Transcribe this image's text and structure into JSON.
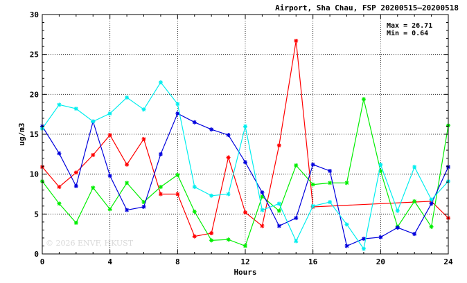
{
  "chart_data": {
    "type": "line",
    "title": "Airport, Sha Chau, FSP 20200515—20200518",
    "xlabel": "Hours",
    "ylabel": "ug/m3",
    "xlim": [
      0,
      24
    ],
    "ylim": [
      0,
      30
    ],
    "x_ticks": [
      "0",
      "4",
      "8",
      "12",
      "16",
      "20",
      "24"
    ],
    "y_ticks": [
      "0",
      "5",
      "10",
      "15",
      "20",
      "25",
      "30"
    ],
    "grid": true,
    "legend": "none",
    "stats": {
      "max_label": "Max = 26.71",
      "min_label": "Min =  0.64"
    },
    "watermark": "© 2026  ENVF, HKUST",
    "series": [
      {
        "color": "#ff0000",
        "points": [
          [
            0,
            10.9
          ],
          [
            1,
            8.4
          ],
          [
            2,
            10.2
          ],
          [
            3,
            12.4
          ],
          [
            4,
            14.9
          ],
          [
            5,
            11.2
          ],
          [
            6,
            14.4
          ],
          [
            7,
            7.5
          ],
          [
            8,
            7.5
          ],
          [
            9,
            2.2
          ],
          [
            10,
            2.6
          ],
          [
            11,
            12.1
          ],
          [
            12,
            5.2
          ],
          [
            13,
            3.5
          ],
          [
            14,
            13.6
          ],
          [
            15,
            26.71
          ],
          [
            16,
            5.9
          ],
          [
            23,
            6.6
          ],
          [
            24,
            4.5
          ]
        ]
      },
      {
        "color": "#00ee00",
        "points": [
          [
            0,
            9.1
          ],
          [
            1,
            6.3
          ],
          [
            2,
            3.9
          ],
          [
            3,
            8.3
          ],
          [
            4,
            5.6
          ],
          [
            5,
            8.9
          ],
          [
            6,
            6.5
          ],
          [
            7,
            8.4
          ],
          [
            8,
            9.9
          ],
          [
            9,
            5.3
          ],
          [
            10,
            1.7
          ],
          [
            11,
            1.8
          ],
          [
            12,
            1.0
          ],
          [
            13,
            7.2
          ],
          [
            14,
            5.4
          ],
          [
            15,
            11.1
          ],
          [
            16,
            8.7
          ],
          [
            17,
            8.9
          ],
          [
            18,
            8.9
          ],
          [
            19,
            19.4
          ],
          [
            20,
            10.4
          ],
          [
            21,
            3.4
          ],
          [
            22,
            6.6
          ],
          [
            23,
            3.4
          ],
          [
            24,
            16.1
          ]
        ]
      },
      {
        "color": "#0000dd",
        "points": [
          [
            0,
            16.0
          ],
          [
            1,
            12.6
          ],
          [
            2,
            8.5
          ],
          [
            3,
            16.6
          ],
          [
            4,
            9.8
          ],
          [
            5,
            5.5
          ],
          [
            6,
            5.9
          ],
          [
            7,
            12.5
          ],
          [
            8,
            17.6
          ],
          [
            9,
            16.5
          ],
          [
            10,
            15.6
          ],
          [
            11,
            14.9
          ],
          [
            12,
            11.5
          ],
          [
            13,
            7.7
          ],
          [
            14,
            3.5
          ],
          [
            15,
            4.5
          ],
          [
            16,
            11.2
          ],
          [
            17,
            10.4
          ],
          [
            18,
            1.0
          ],
          [
            19,
            1.9
          ],
          [
            20,
            2.1
          ],
          [
            21,
            3.3
          ],
          [
            22,
            2.5
          ],
          [
            23,
            6.3
          ],
          [
            24,
            10.9
          ]
        ]
      },
      {
        "color": "#00eeee",
        "points": [
          [
            0,
            15.7
          ],
          [
            1,
            18.7
          ],
          [
            2,
            18.2
          ],
          [
            3,
            16.6
          ],
          [
            4,
            17.6
          ],
          [
            5,
            19.6
          ],
          [
            6,
            18.1
          ],
          [
            7,
            21.5
          ],
          [
            8,
            18.8
          ],
          [
            9,
            8.4
          ],
          [
            10,
            7.3
          ],
          [
            11,
            7.5
          ],
          [
            12,
            16.0
          ],
          [
            13,
            5.5
          ],
          [
            14,
            6.3
          ],
          [
            15,
            1.6
          ],
          [
            16,
            6.0
          ],
          [
            17,
            6.5
          ],
          [
            18,
            3.7
          ],
          [
            19,
            0.64
          ],
          [
            20,
            11.2
          ],
          [
            21,
            5.4
          ],
          [
            22,
            10.9
          ],
          [
            23,
            6.8
          ],
          [
            24,
            9.1
          ]
        ]
      }
    ]
  }
}
